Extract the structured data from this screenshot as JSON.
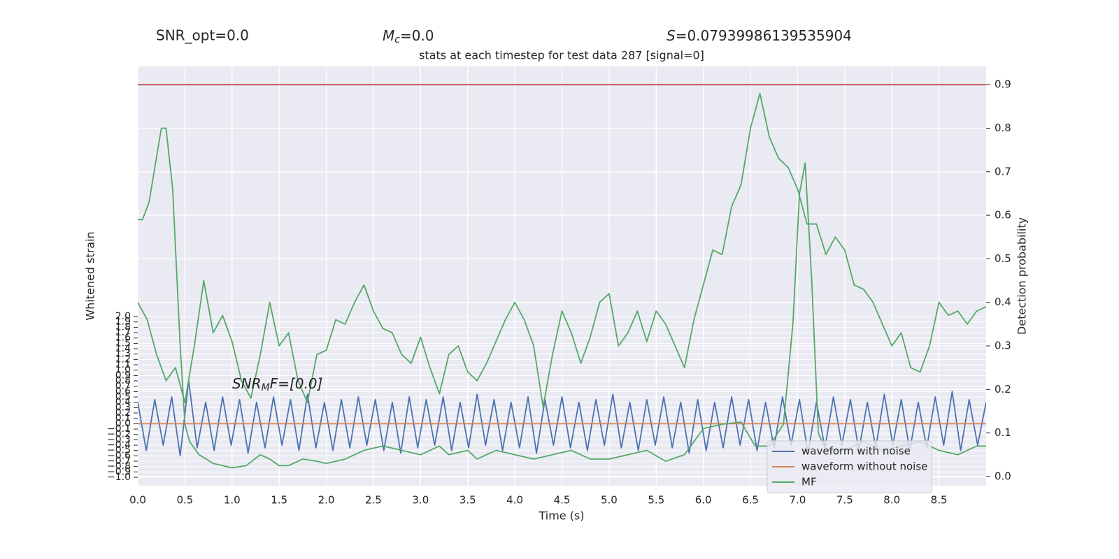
{
  "chart_data": {
    "type": "line",
    "title": "stats at each timestep for test data 287 [signal=0]",
    "annotations": [
      {
        "text": "SNR_opt=0.0"
      },
      {
        "symbol": "M",
        "subscript": "c",
        "text": "=0.0"
      },
      {
        "symbol": "S",
        "text": "=0.07939986139535904"
      },
      {
        "symbol": "SNR",
        "subscript": "M",
        "text": "F=[0.0]"
      }
    ],
    "xlabel": "Time (s)",
    "ylabel": "Whitened strain",
    "y2label": "Detection probability",
    "xlim": [
      0,
      9.0
    ],
    "xticks": [
      {
        "value": 0,
        "label": "0.0"
      },
      0.5,
      {
        "value": 1,
        "label": "1.0"
      },
      1.5,
      {
        "value": 2,
        "label": "2.0"
      },
      2.5,
      {
        "value": 3,
        "label": "3.0"
      },
      3.5,
      {
        "value": 4,
        "label": "4.0"
      },
      4.5,
      {
        "value": 5,
        "label": "5.0"
      },
      5.5,
      {
        "value": 6,
        "label": "6.0"
      },
      6.5,
      {
        "value": 7,
        "label": "7.0"
      },
      7.5,
      {
        "value": 8,
        "label": "8.0"
      },
      8.5
    ],
    "ylim": [
      -1.156,
      6.67
    ],
    "yticks": [
      {
        "value": -1,
        "label": "−1.0"
      },
      {
        "value": -0.9,
        "label": "−0.9"
      },
      {
        "value": -0.8,
        "label": "−0.8"
      },
      {
        "value": -0.7,
        "label": "−0.7"
      },
      {
        "value": -0.6,
        "label": "−0.6"
      },
      {
        "value": -0.5,
        "label": "−0.5"
      },
      {
        "value": -0.4,
        "label": "−0.4"
      },
      {
        "value": -0.3,
        "label": "−0.3"
      },
      {
        "value": -0.2,
        "label": "−0.2"
      },
      {
        "value": -0.1,
        "label": "−0.1"
      },
      {
        "value": 0,
        "label": "0.0"
      },
      0.1,
      0.2,
      0.3,
      0.4,
      0.5,
      0.6,
      0.7,
      0.8,
      0.9,
      {
        "value": 1,
        "label": "1.0"
      },
      1.1,
      1.2,
      1.3,
      1.4,
      1.5,
      1.6,
      1.7,
      1.8,
      1.9,
      {
        "value": 2,
        "label": "2.0"
      }
    ],
    "y2lim": [
      -0.021,
      0.942
    ],
    "y2ticks": [
      {
        "value": 0,
        "label": "0.0"
      },
      0.1,
      0.2,
      0.3,
      0.4,
      0.5,
      0.6,
      0.7,
      0.8,
      0.9
    ],
    "grid": true,
    "legend": "lower right",
    "series": [
      {
        "name": "waveform with noise",
        "color": "#4c72b0",
        "x": [
          0,
          0.09,
          0.18,
          0.27,
          0.36,
          0.45,
          0.54,
          0.63,
          0.72,
          0.81,
          0.9,
          0.99,
          1.08,
          1.17,
          1.26,
          1.35,
          1.44,
          1.53,
          1.62,
          1.71,
          1.8,
          1.89,
          1.98,
          2.07,
          2.16,
          2.25,
          2.34,
          2.43,
          2.52,
          2.61,
          2.7,
          2.79,
          2.88,
          2.97,
          3.06,
          3.15,
          3.24,
          3.33,
          3.42,
          3.51,
          3.6,
          3.69,
          3.78,
          3.87,
          3.96,
          4.05,
          4.14,
          4.23,
          4.32,
          4.41,
          4.5,
          4.59,
          4.68,
          4.77,
          4.86,
          4.95,
          5.04,
          5.13,
          5.22,
          5.31,
          5.4,
          5.49,
          5.58,
          5.67,
          5.76,
          5.85,
          5.94,
          6.03,
          6.12,
          6.21,
          6.3,
          6.39,
          6.48,
          6.57,
          6.66,
          6.75,
          6.84,
          6.93,
          7.02,
          7.11,
          7.2,
          7.29,
          7.38,
          7.47,
          7.56,
          7.65,
          7.74,
          7.83,
          7.92,
          8.01,
          8.1,
          8.19,
          8.28,
          8.37,
          8.46,
          8.55,
          8.64,
          8.73,
          8.82,
          8.91,
          9.0
        ],
        "values": [
          0.4,
          -0.5,
          0.45,
          -0.4,
          0.5,
          -0.6,
          0.8,
          -0.45,
          0.4,
          -0.5,
          0.5,
          -0.4,
          0.45,
          -0.55,
          0.4,
          -0.45,
          0.5,
          -0.4,
          0.45,
          -0.5,
          0.55,
          -0.45,
          0.4,
          -0.5,
          0.45,
          -0.45,
          0.5,
          -0.4,
          0.45,
          -0.5,
          0.4,
          -0.55,
          0.5,
          -0.45,
          0.45,
          -0.4,
          0.5,
          -0.5,
          0.4,
          -0.45,
          0.55,
          -0.4,
          0.45,
          -0.5,
          0.4,
          -0.45,
          0.5,
          -0.55,
          0.45,
          -0.4,
          0.5,
          -0.45,
          0.4,
          -0.5,
          0.45,
          -0.4,
          0.55,
          -0.45,
          0.4,
          -0.5,
          0.45,
          -0.4,
          0.5,
          -0.45,
          0.4,
          -0.55,
          0.45,
          -0.5,
          0.4,
          -0.45,
          0.5,
          -0.4,
          0.45,
          -0.5,
          0.4,
          -0.45,
          0.5,
          -0.4,
          0.45,
          -0.55,
          0.4,
          -0.45,
          0.5,
          -0.4,
          0.45,
          -0.5,
          0.4,
          -0.45,
          0.55,
          -0.4,
          0.45,
          -0.5,
          0.4,
          -0.45,
          0.5,
          -0.4,
          0.6,
          -0.5,
          0.45,
          -0.4,
          0.4
        ]
      },
      {
        "name": "waveform without noise",
        "color": "#dd8452",
        "x": [
          0,
          9.0
        ],
        "values": [
          0,
          0
        ]
      },
      {
        "name": "MF",
        "color": "#55a868",
        "axis": "y2",
        "x": [
          0,
          0.05,
          0.12,
          0.25,
          0.3,
          0.37,
          0.45,
          0.5,
          0.55,
          0.65,
          0.8,
          1.0,
          1.15,
          1.3,
          1.4,
          1.5,
          1.6,
          1.75,
          1.9,
          2.0,
          2.2,
          2.4,
          2.6,
          2.8,
          3.0,
          3.2,
          3.3,
          3.5,
          3.6,
          3.8,
          4.0,
          4.2,
          4.4,
          4.6,
          4.8,
          5.0,
          5.2,
          5.4,
          5.6,
          5.8,
          6.0,
          6.2,
          6.4,
          6.55,
          6.7,
          6.85,
          6.95,
          7.02,
          7.08,
          7.15,
          7.22,
          7.3,
          7.5,
          7.7,
          7.9,
          8.1,
          8.3,
          8.5,
          8.7,
          8.9,
          9.0
        ],
        "values": [
          0.59,
          0.59,
          0.63,
          0.8,
          0.8,
          0.66,
          0.3,
          0.12,
          0.08,
          0.05,
          0.03,
          0.02,
          0.025,
          0.05,
          0.04,
          0.025,
          0.025,
          0.04,
          0.035,
          0.03,
          0.04,
          0.06,
          0.07,
          0.06,
          0.05,
          0.07,
          0.05,
          0.06,
          0.04,
          0.06,
          0.05,
          0.04,
          0.05,
          0.06,
          0.04,
          0.04,
          0.05,
          0.06,
          0.035,
          0.05,
          0.11,
          0.12,
          0.125,
          0.07,
          0.07,
          0.12,
          0.35,
          0.65,
          0.72,
          0.45,
          0.1,
          0.06,
          0.06,
          0.08,
          0.06,
          0.07,
          0.08,
          0.06,
          0.05,
          0.07,
          0.07
        ]
      },
      {
        "color": "#55a868",
        "axis": "y2",
        "x": [
          0,
          0.1,
          0.2,
          0.3,
          0.4,
          0.5,
          0.6,
          0.7,
          0.8,
          0.9,
          1.0,
          1.1,
          1.2,
          1.3,
          1.4,
          1.5,
          1.6,
          1.7,
          1.8,
          1.9,
          2.0,
          2.1,
          2.2,
          2.3,
          2.4,
          2.5,
          2.6,
          2.7,
          2.8,
          2.9,
          3.0,
          3.1,
          3.2,
          3.3,
          3.4,
          3.5,
          3.6,
          3.7,
          3.8,
          3.9,
          4.0,
          4.1,
          4.2,
          4.3,
          4.4,
          4.5,
          4.6,
          4.7,
          4.8,
          4.9,
          5.0,
          5.1,
          5.2,
          5.3,
          5.4,
          5.5,
          5.6,
          5.7,
          5.8,
          5.9,
          6.0,
          6.1,
          6.2,
          6.3,
          6.4,
          6.5,
          6.6,
          6.7,
          6.8,
          6.9,
          7.0,
          7.1,
          7.2,
          7.3,
          7.4,
          7.5,
          7.6,
          7.7,
          7.8,
          7.9,
          8.0,
          8.1,
          8.2,
          8.3,
          8.4,
          8.5,
          8.6,
          8.7,
          8.8,
          8.9,
          9.0
        ],
        "values": [
          0.4,
          0.36,
          0.28,
          0.22,
          0.25,
          0.17,
          0.3,
          0.45,
          0.33,
          0.37,
          0.31,
          0.22,
          0.18,
          0.28,
          0.4,
          0.3,
          0.33,
          0.22,
          0.17,
          0.28,
          0.29,
          0.36,
          0.35,
          0.4,
          0.44,
          0.38,
          0.34,
          0.33,
          0.28,
          0.26,
          0.32,
          0.25,
          0.19,
          0.28,
          0.3,
          0.24,
          0.22,
          0.26,
          0.31,
          0.36,
          0.4,
          0.36,
          0.3,
          0.16,
          0.28,
          0.38,
          0.33,
          0.26,
          0.32,
          0.4,
          0.42,
          0.3,
          0.33,
          0.38,
          0.31,
          0.38,
          0.35,
          0.3,
          0.25,
          0.36,
          0.44,
          0.52,
          0.51,
          0.62,
          0.67,
          0.8,
          0.88,
          0.78,
          0.73,
          0.71,
          0.66,
          0.58,
          0.58,
          0.51,
          0.55,
          0.52,
          0.44,
          0.43,
          0.4,
          0.35,
          0.3,
          0.33,
          0.25,
          0.24,
          0.3,
          0.4,
          0.37,
          0.38,
          0.35,
          0.38,
          0.39
        ]
      },
      {
        "color": "#c44e52",
        "axis": "y2",
        "x": [
          0,
          9.0
        ],
        "values": [
          0.9,
          0.9
        ]
      }
    ]
  }
}
